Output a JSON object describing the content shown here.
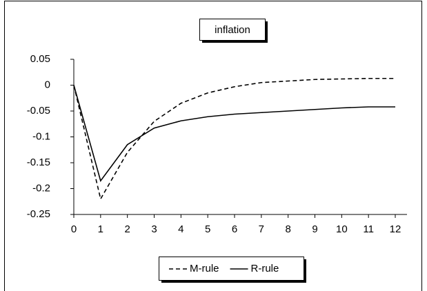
{
  "chart_data": {
    "type": "line",
    "title": "inflation",
    "x": [
      0,
      1,
      2,
      3,
      4,
      5,
      6,
      7,
      8,
      9,
      10,
      11,
      12
    ],
    "series": [
      {
        "name": "M-rule",
        "color": "#000000",
        "dash": true,
        "values": [
          0,
          -0.22,
          -0.13,
          -0.07,
          -0.035,
          -0.015,
          -0.003,
          0.005,
          0.008,
          0.011,
          0.012,
          0.013,
          0.013
        ]
      },
      {
        "name": "R-rule",
        "color": "#000000",
        "dash": false,
        "values": [
          0,
          -0.185,
          -0.115,
          -0.083,
          -0.069,
          -0.061,
          -0.056,
          -0.053,
          -0.05,
          -0.047,
          -0.044,
          -0.042,
          -0.042
        ]
      }
    ],
    "xlim": [
      0,
      12
    ],
    "xticks": [
      0,
      1,
      2,
      3,
      4,
      5,
      6,
      7,
      8,
      9,
      10,
      11,
      12
    ],
    "ylim": [
      -0.25,
      0.05
    ],
    "yticks": [
      0.05,
      0,
      -0.05,
      -0.1,
      -0.15,
      -0.2,
      -0.25
    ],
    "grid": false,
    "legend": "bottom"
  }
}
